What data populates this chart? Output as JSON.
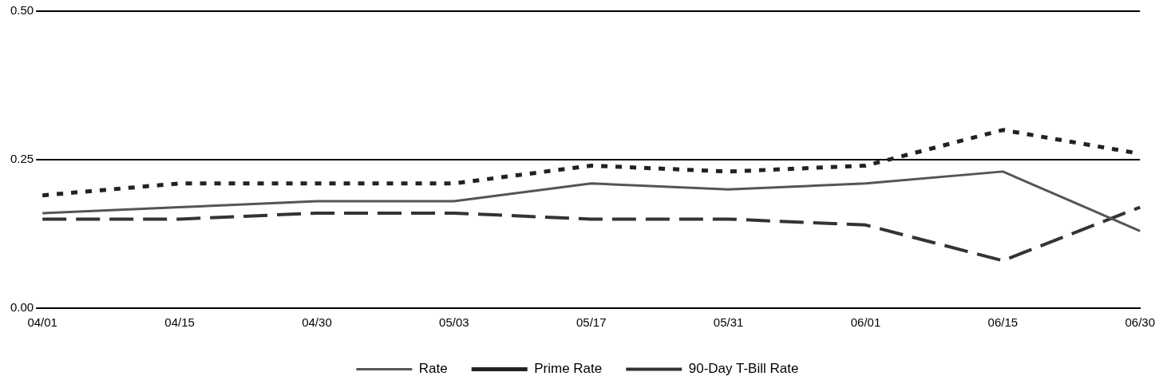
{
  "chart_data": {
    "type": "line",
    "categories": [
      "04/01",
      "04/15",
      "04/30",
      "05/03",
      "05/17",
      "05/31",
      "06/01",
      "06/15",
      "06/30"
    ],
    "series": [
      {
        "name": "Rate",
        "color": "#555555",
        "line_style": "solid",
        "values": [
          0.16,
          0.17,
          0.18,
          0.18,
          0.21,
          0.2,
          0.21,
          0.23,
          0.13
        ]
      },
      {
        "name": "Prime Rate",
        "color": "#222222",
        "line_style": "dotted",
        "values": [
          0.19,
          0.21,
          0.21,
          0.21,
          0.24,
          0.23,
          0.24,
          0.3,
          0.26
        ]
      },
      {
        "name": "90-Day T-Bill Rate",
        "color": "#333333",
        "line_style": "dashed",
        "values": [
          0.15,
          0.15,
          0.16,
          0.16,
          0.15,
          0.15,
          0.14,
          0.08,
          0.17
        ]
      }
    ],
    "ylim": [
      0,
      0.5
    ],
    "yticks": [
      {
        "value": 0,
        "label": "0.00"
      },
      {
        "value": 0.25,
        "label": "0.25"
      },
      {
        "value": 0.5,
        "label": "0.50"
      }
    ],
    "grid": "y",
    "legend": "bottom",
    "marker": "none"
  }
}
